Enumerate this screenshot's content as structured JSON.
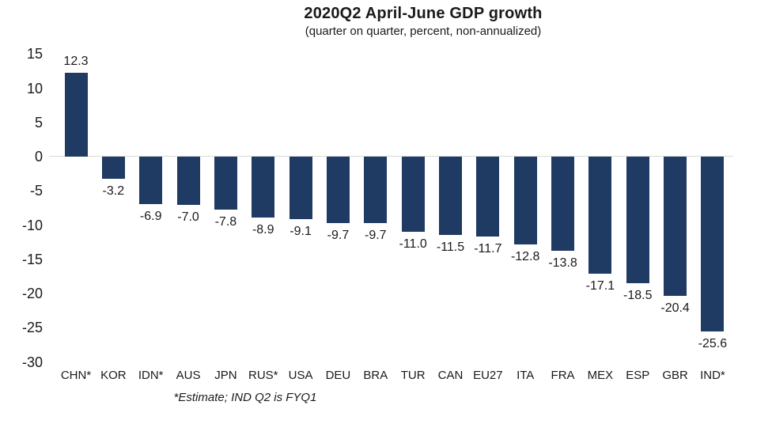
{
  "chart_data": {
    "type": "bar",
    "title": "2020Q2 April-June GDP growth",
    "subtitle": "(quarter on quarter, percent, non-annualized)",
    "footnote": "*Estimate; IND Q2 is FYQ1",
    "categories": [
      "CHN*",
      "KOR",
      "IDN*",
      "AUS",
      "JPN",
      "RUS*",
      "USA",
      "DEU",
      "BRA",
      "TUR",
      "CAN",
      "EU27",
      "ITA",
      "FRA",
      "MEX",
      "ESP",
      "GBR",
      "IND*"
    ],
    "values": [
      12.3,
      -3.2,
      -6.9,
      -7.0,
      -7.8,
      -8.9,
      -9.1,
      -9.7,
      -9.7,
      -11.0,
      -11.5,
      -11.7,
      -12.8,
      -13.8,
      -17.1,
      -18.5,
      -20.4,
      -25.6
    ],
    "yticks": [
      15,
      10,
      5,
      0,
      -5,
      -10,
      -15,
      -20,
      -25,
      -30
    ],
    "ylim": [
      -30,
      15
    ],
    "bar_color": "#1F3A63",
    "zero_line_color": "#D9D9D9",
    "text_color": "#1a1a1a",
    "grid": "off",
    "legend": "none",
    "data_labels": "on"
  }
}
